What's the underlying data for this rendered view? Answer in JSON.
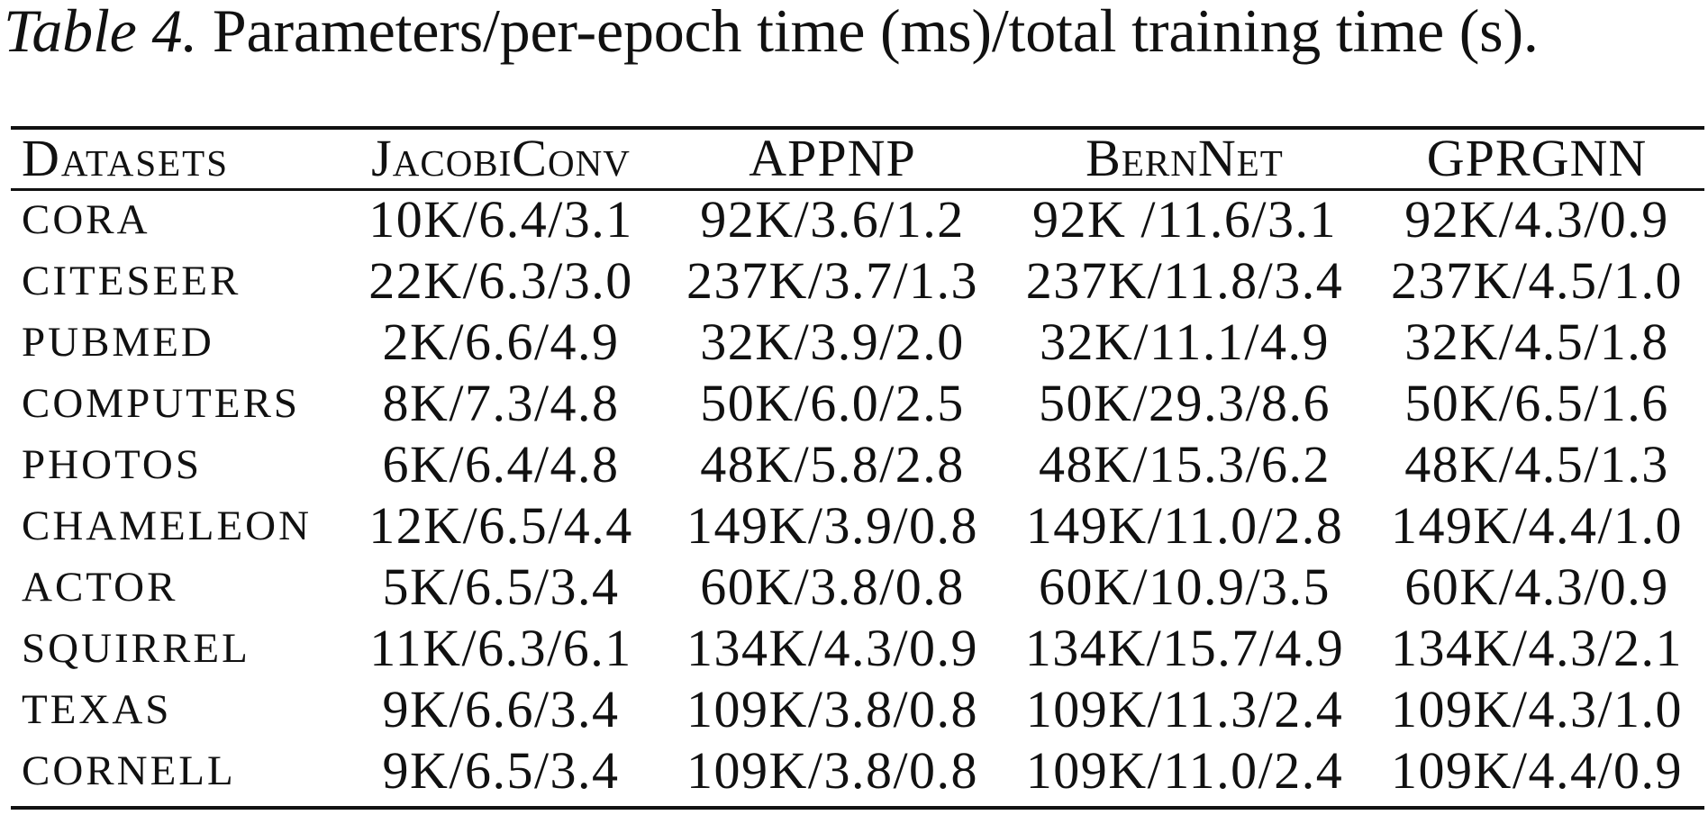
{
  "caption": {
    "label": "Table 4.",
    "text": "Parameters/per-epoch time (ms)/total training time (s)."
  },
  "table": {
    "headers": [
      "Datasets",
      "JacobiConv",
      "APPNP",
      "BernNet",
      "GPRGNN"
    ],
    "rows": [
      [
        "CORA",
        "10K/6.4/3.1",
        "92K/3.6/1.2",
        "92K /11.6/3.1",
        "92K/4.3/0.9"
      ],
      [
        "CITESEER",
        "22K/6.3/3.0",
        "237K/3.7/1.3",
        "237K/11.8/3.4",
        "237K/4.5/1.0"
      ],
      [
        "PUBMED",
        "2K/6.6/4.9",
        "32K/3.9/2.0",
        "32K/11.1/4.9",
        "32K/4.5/1.8"
      ],
      [
        "COMPUTERS",
        "8K/7.3/4.8",
        "50K/6.0/2.5",
        "50K/29.3/8.6",
        "50K/6.5/1.6"
      ],
      [
        "PHOTOS",
        "6K/6.4/4.8",
        "48K/5.8/2.8",
        "48K/15.3/6.2",
        "48K/4.5/1.3"
      ],
      [
        "CHAMELEON",
        "12K/6.5/4.4",
        "149K/3.9/0.8",
        "149K/11.0/2.8",
        "149K/4.4/1.0"
      ],
      [
        "ACTOR",
        "5K/6.5/3.4",
        "60K/3.8/0.8",
        "60K/10.9/3.5",
        "60K/4.3/0.9"
      ],
      [
        "SQUIRREL",
        "11K/6.3/6.1",
        "134K/4.3/0.9",
        "134K/15.7/4.9",
        "134K/4.3/2.1"
      ],
      [
        "TEXAS",
        "9K/6.6/3.4",
        "109K/3.8/0.8",
        "109K/11.3/2.4",
        "109K/4.3/1.0"
      ],
      [
        "CORNELL",
        "9K/6.5/3.4",
        "109K/3.8/0.8",
        "109K/11.0/2.4",
        "109K/4.4/0.9"
      ]
    ]
  }
}
